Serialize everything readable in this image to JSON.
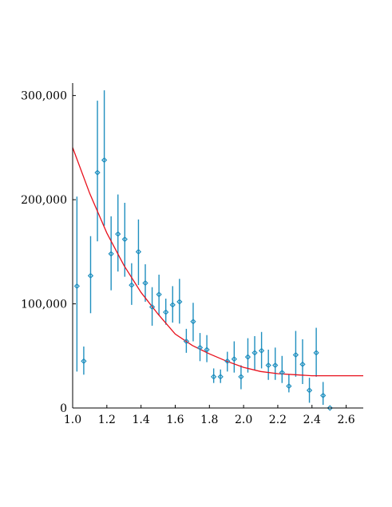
{
  "chart_data": {
    "type": "scatter",
    "title": "",
    "xlabel": "",
    "ylabel": "",
    "xlim": [
      1.0,
      2.7
    ],
    "ylim": [
      0,
      312000
    ],
    "x_ticks": [
      1.0,
      1.2,
      1.4,
      1.6,
      1.8,
      2.0,
      2.2,
      2.4,
      2.6
    ],
    "x_tick_labels": [
      "1.0",
      "1.2",
      "1.4",
      "1.6",
      "1.8",
      "2.0",
      "2.2",
      "2.4",
      "2.6"
    ],
    "y_ticks": [
      0,
      100000,
      200000,
      300000
    ],
    "y_tick_labels": [
      "0",
      "100,000",
      "200,000",
      "300,000"
    ],
    "grid": false,
    "legend": "none",
    "colors": {
      "points": "#1f8fbf",
      "fit": "#e8101c",
      "axes": "#000000"
    },
    "series": [
      {
        "kind": "points-with-errorbars",
        "points": [
          {
            "x": 1.025,
            "y": 117000,
            "lo": 35000,
            "hi": 203000
          },
          {
            "x": 1.065,
            "y": 45000,
            "lo": 32000,
            "hi": 59000
          },
          {
            "x": 1.105,
            "y": 127000,
            "lo": 91000,
            "hi": 165000
          },
          {
            "x": 1.145,
            "y": 226000,
            "lo": 160000,
            "hi": 295000
          },
          {
            "x": 1.185,
            "y": 238000,
            "lo": 175000,
            "hi": 305000
          },
          {
            "x": 1.225,
            "y": 148000,
            "lo": 113000,
            "hi": 184000
          },
          {
            "x": 1.265,
            "y": 167000,
            "lo": 131000,
            "hi": 205000
          },
          {
            "x": 1.305,
            "y": 162000,
            "lo": 126000,
            "hi": 197000
          },
          {
            "x": 1.345,
            "y": 118000,
            "lo": 99000,
            "hi": 139000
          },
          {
            "x": 1.385,
            "y": 150000,
            "lo": 118000,
            "hi": 181000
          },
          {
            "x": 1.425,
            "y": 120000,
            "lo": 102000,
            "hi": 138000
          },
          {
            "x": 1.465,
            "y": 97000,
            "lo": 79000,
            "hi": 116000
          },
          {
            "x": 1.505,
            "y": 109000,
            "lo": 89000,
            "hi": 128000
          },
          {
            "x": 1.545,
            "y": 92000,
            "lo": 80000,
            "hi": 105000
          },
          {
            "x": 1.585,
            "y": 99000,
            "lo": 82000,
            "hi": 117000
          },
          {
            "x": 1.625,
            "y": 102000,
            "lo": 81000,
            "hi": 124000
          },
          {
            "x": 1.665,
            "y": 64000,
            "lo": 53000,
            "hi": 76000
          },
          {
            "x": 1.705,
            "y": 83000,
            "lo": 64000,
            "hi": 101000
          },
          {
            "x": 1.745,
            "y": 58000,
            "lo": 45000,
            "hi": 72000
          },
          {
            "x": 1.785,
            "y": 56000,
            "lo": 44000,
            "hi": 70000
          },
          {
            "x": 1.825,
            "y": 30000,
            "lo": 24000,
            "hi": 38000
          },
          {
            "x": 1.865,
            "y": 30000,
            "lo": 24000,
            "hi": 37000
          },
          {
            "x": 1.905,
            "y": 45000,
            "lo": 35000,
            "hi": 54000
          },
          {
            "x": 1.945,
            "y": 47000,
            "lo": 34000,
            "hi": 64000
          },
          {
            "x": 1.985,
            "y": 30000,
            "lo": 18000,
            "hi": 41000
          },
          {
            "x": 2.025,
            "y": 49000,
            "lo": 34000,
            "hi": 67000
          },
          {
            "x": 2.065,
            "y": 53000,
            "lo": 36000,
            "hi": 69000
          },
          {
            "x": 2.105,
            "y": 55000,
            "lo": 38000,
            "hi": 73000
          },
          {
            "x": 2.145,
            "y": 41000,
            "lo": 27000,
            "hi": 56000
          },
          {
            "x": 2.185,
            "y": 41000,
            "lo": 27000,
            "hi": 58000
          },
          {
            "x": 2.225,
            "y": 34000,
            "lo": 24000,
            "hi": 50000
          },
          {
            "x": 2.265,
            "y": 21000,
            "lo": 15000,
            "hi": 32000
          },
          {
            "x": 2.305,
            "y": 51000,
            "lo": 30000,
            "hi": 74000
          },
          {
            "x": 2.345,
            "y": 42000,
            "lo": 23000,
            "hi": 66000
          },
          {
            "x": 2.385,
            "y": 17000,
            "lo": 5000,
            "hi": 29000
          },
          {
            "x": 2.425,
            "y": 53000,
            "lo": 30000,
            "hi": 77000
          },
          {
            "x": 2.465,
            "y": 12000,
            "lo": 3000,
            "hi": 25000
          },
          {
            "x": 2.505,
            "y": 0,
            "lo": 0,
            "hi": 0
          }
        ]
      },
      {
        "kind": "line",
        "x": [
          1.0,
          1.1,
          1.2,
          1.3,
          1.4,
          1.5,
          1.6,
          1.7,
          1.8,
          1.9,
          2.0,
          2.1,
          2.2,
          2.3,
          2.4,
          2.5,
          2.6,
          2.7
        ],
        "y": [
          250000,
          206000,
          168000,
          137000,
          111000,
          90000,
          71000,
          60000,
          52000,
          45000,
          39000,
          35000,
          33000,
          32000,
          31000,
          31000,
          31000,
          31000
        ]
      }
    ]
  }
}
